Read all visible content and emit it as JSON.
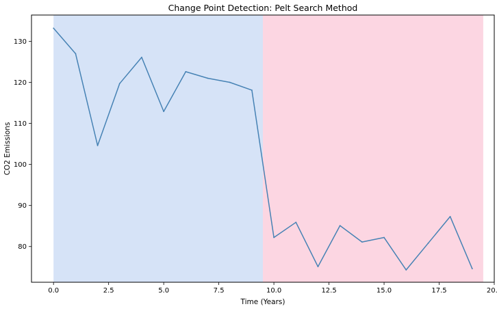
{
  "chart_data": {
    "type": "line",
    "title": "Change Point Detection: Pelt Search Method",
    "xlabel": "Time (Years)",
    "ylabel": "CO2 Emissions",
    "xlim": [
      -1.0,
      20.0
    ],
    "ylim": [
      71.3,
      136.4
    ],
    "xticks": [
      0.0,
      2.5,
      5.0,
      7.5,
      10.0,
      12.5,
      15.0,
      17.5,
      20.0
    ],
    "xtick_labels": [
      "0.0",
      "2.5",
      "5.0",
      "7.5",
      "10.0",
      "12.5",
      "15.0",
      "17.5",
      "20.0"
    ],
    "yticks": [
      80,
      90,
      100,
      110,
      120,
      130
    ],
    "ytick_labels": [
      "80",
      "90",
      "100",
      "110",
      "120",
      "130"
    ],
    "grid": false,
    "legend": "none",
    "series": [
      {
        "color": "#4682b4",
        "x": [
          0,
          1,
          2,
          3,
          4,
          5,
          6,
          7,
          8,
          9,
          10,
          11,
          12,
          13,
          14,
          15,
          16,
          17,
          18,
          19
        ],
        "values": [
          133.2,
          127.0,
          104.6,
          119.7,
          126.1,
          112.9,
          122.6,
          121.0,
          120.0,
          118.1,
          82.2,
          85.9,
          75.1,
          85.1,
          81.1,
          82.2,
          74.3,
          80.8,
          87.3,
          74.6
        ]
      }
    ],
    "regions": [
      {
        "x_start": 0.0,
        "x_end": 9.5,
        "color": "#d6e3f7"
      },
      {
        "x_start": 9.5,
        "x_end": 19.5,
        "color": "#fcd6e2"
      }
    ]
  }
}
